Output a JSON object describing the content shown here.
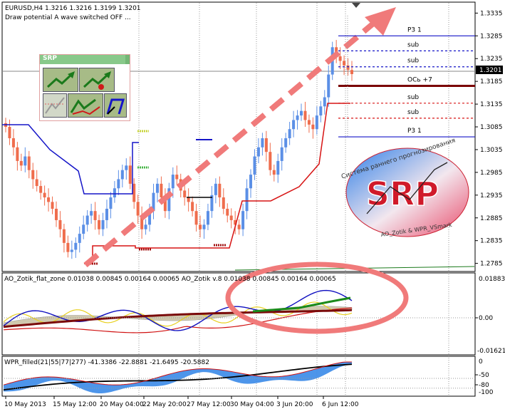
{
  "window": {
    "symbol_header": "EURUSD,H4  1.3216 1.3216 1.3199 1.3201",
    "status_line": "Draw potential A wave switched OFF ..."
  },
  "colors": {
    "background": "#ffffff",
    "bull": "#5b8fe6",
    "bear": "#ef6d4d",
    "red_level": "#d71414",
    "blue_level": "#1515c8",
    "arrow": "#f07a7a",
    "dark_level": "#7a0000",
    "green_dots": "#48b548",
    "yellow_dots": "#c8d43a"
  },
  "srp_panel": {
    "title": "SRP",
    "buttons": [
      {
        "name": "arrow-up-icon"
      },
      {
        "name": "arrow-up-dot-icon"
      },
      {
        "name": "zigzag-icon"
      },
      {
        "name": "wave-arrow-icon"
      },
      {
        "name": "channel-icon"
      }
    ]
  },
  "levels": [
    {
      "label": "P3 1",
      "price": "1.3285",
      "style": "solid"
    },
    {
      "label": "sub",
      "price": "1.3252",
      "style": "dashed"
    },
    {
      "label": "sub",
      "price": "1.3217",
      "style": "dashed"
    },
    {
      "label": "ОСь +7",
      "price": "1.3175",
      "style": "thick"
    },
    {
      "label": "sub",
      "price": "1.3137",
      "style": "dashed"
    },
    {
      "label": "sub",
      "price": "1.3104",
      "style": "dashed"
    },
    {
      "label": "P3 1",
      "price": "1.3063",
      "style": "solid"
    }
  ],
  "price_axis": {
    "ticks": [
      "1.3335",
      "1.3285",
      "1.3235",
      "1.3185",
      "1.3135",
      "1.3085",
      "1.3035",
      "1.2985",
      "1.2935",
      "1.2885",
      "1.2835",
      "1.2785"
    ],
    "current_price": "1.3201"
  },
  "logo": {
    "top_text": "Система раннего прогнозирования",
    "main_text": "SRP",
    "bottom_text": "AO_Zotik & WPR_VSmark"
  },
  "indicator1": {
    "header": "AO_Zotik_flat_zone 0.01038 0.00845 0.00164 0.00065   AO_Zotik v.8 0.01038 0.00845 0.00164 0.00065",
    "ticks": [
      "0.01883",
      "0.00",
      "-0.01621"
    ]
  },
  "indicator2": {
    "header": "WPR_filled(21|55|77|277) -41.3386 -22.8881 -21.6495 -20.5882",
    "ticks": [
      "0",
      "-50",
      "-80",
      "-100"
    ]
  },
  "time_axis": {
    "labels": [
      "10 May 2013",
      "15 May 12:00",
      "20 May 04:00",
      "22 May 20:00",
      "27 May 12:00",
      "30 May 04:00",
      "3 Jun 20:00",
      "6 Jun 12:00"
    ]
  },
  "chart_data": {
    "type": "candlestick",
    "title": "EURUSD,H4",
    "ylim": [
      1.2775,
      1.3345
    ],
    "closes": [
      1.3085,
      1.306,
      1.304,
      1.301,
      1.3,
      1.302,
      1.299,
      1.297,
      1.2955,
      1.294,
      1.293,
      1.292,
      1.2905,
      1.288,
      1.286,
      1.283,
      1.281,
      1.2815,
      1.283,
      1.285,
      1.287,
      1.289,
      1.29,
      1.288,
      1.286,
      1.288,
      1.2905,
      1.293,
      1.295,
      1.297,
      1.299,
      1.3,
      1.296,
      1.292,
      1.289,
      1.286,
      1.287,
      1.29,
      1.294,
      1.296,
      1.293,
      1.29,
      1.295,
      1.298,
      1.297,
      1.2945,
      1.293,
      1.292,
      1.29,
      1.287,
      1.286,
      1.287,
      1.29,
      1.2935,
      1.296,
      1.293,
      1.2905,
      1.289,
      1.288,
      1.287,
      1.286,
      1.29,
      1.295,
      1.298,
      1.302,
      1.304,
      1.306,
      1.303,
      1.299,
      1.298,
      1.301,
      1.304,
      1.306,
      1.308,
      1.31,
      1.311,
      1.312,
      1.31,
      1.309,
      1.308,
      1.311,
      1.313,
      1.315,
      1.32,
      1.326,
      1.324,
      1.323,
      1.322,
      1.321,
      1.3201
    ]
  }
}
